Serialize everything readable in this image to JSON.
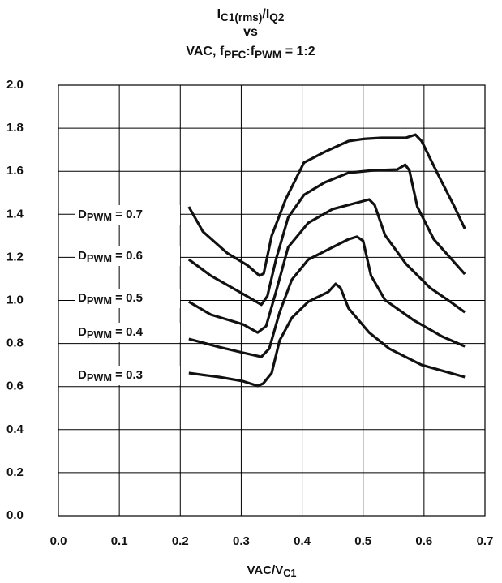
{
  "chart_data": {
    "type": "line",
    "title": [
      [
        "I",
        "C1(rms)",
        "/I",
        "Q2"
      ],
      [
        "vs"
      ],
      [
        "VAC, f",
        "PFC",
        ":f",
        "PWM",
        " = 1:2"
      ]
    ],
    "xlabel": [
      "VAC/V",
      "C1"
    ],
    "xlim": [
      0,
      0.7
    ],
    "xticks": [
      {
        "value": 0,
        "label": "0.0"
      },
      0.1,
      0.2,
      0.3,
      0.4,
      0.5,
      0.6,
      0.7
    ],
    "ylim": [
      0,
      2
    ],
    "yticks": [
      {
        "value": 0,
        "label": "0.0"
      },
      0.2,
      0.4,
      0.6,
      0.8,
      {
        "value": 1,
        "label": "1.0"
      },
      1.2,
      1.4,
      1.6,
      1.8,
      {
        "value": 2,
        "label": "2.0"
      }
    ],
    "grid": true,
    "series": [
      {
        "name": [
          "D",
          "PWM",
          " = 0.7"
        ],
        "color": "#111111",
        "x": [
          0.214,
          0.237,
          0.277,
          0.31,
          0.33,
          0.337,
          0.35,
          0.373,
          0.403,
          0.437,
          0.476,
          0.5,
          0.53,
          0.57,
          0.586,
          0.596,
          0.623,
          0.65,
          0.667
        ],
        "values": [
          1.435,
          1.32,
          1.22,
          1.164,
          1.115,
          1.125,
          1.3,
          1.47,
          1.64,
          1.69,
          1.74,
          1.75,
          1.755,
          1.755,
          1.77,
          1.74,
          1.585,
          1.435,
          1.333
        ]
      },
      {
        "name": [
          "D",
          "PWM",
          " = 0.6"
        ],
        "color": "#111111",
        "x": [
          0.214,
          0.25,
          0.303,
          0.333,
          0.343,
          0.357,
          0.377,
          0.403,
          0.437,
          0.476,
          0.516,
          0.556,
          0.569,
          0.576,
          0.589,
          0.616,
          0.643,
          0.667
        ],
        "values": [
          1.19,
          1.115,
          1.03,
          0.98,
          1.02,
          1.19,
          1.385,
          1.49,
          1.548,
          1.593,
          1.604,
          1.608,
          1.63,
          1.604,
          1.435,
          1.284,
          1.198,
          1.122
        ]
      },
      {
        "name": [
          "D",
          "PWM",
          " = 0.5"
        ],
        "color": "#111111",
        "x": [
          0.214,
          0.25,
          0.303,
          0.327,
          0.341,
          0.357,
          0.377,
          0.41,
          0.45,
          0.49,
          0.51,
          0.519,
          0.536,
          0.57,
          0.61,
          0.643,
          0.667
        ],
        "values": [
          0.994,
          0.934,
          0.889,
          0.851,
          0.881,
          1.04,
          1.247,
          1.36,
          1.424,
          1.454,
          1.469,
          1.443,
          1.303,
          1.171,
          1.058,
          0.994,
          0.945
        ]
      },
      {
        "name": [
          "D",
          "PWM",
          " = 0.4"
        ],
        "color": "#111111",
        "x": [
          0.214,
          0.264,
          0.303,
          0.333,
          0.346,
          0.363,
          0.383,
          0.41,
          0.45,
          0.476,
          0.49,
          0.5,
          0.513,
          0.536,
          0.583,
          0.63,
          0.667
        ],
        "values": [
          0.821,
          0.783,
          0.757,
          0.738,
          0.776,
          0.945,
          1.096,
          1.19,
          1.247,
          1.284,
          1.296,
          1.277,
          1.115,
          1.002,
          0.908,
          0.832,
          0.787
        ]
      },
      {
        "name": [
          "D",
          "PWM",
          " = 0.3"
        ],
        "color": "#111111",
        "x": [
          0.214,
          0.264,
          0.303,
          0.327,
          0.336,
          0.35,
          0.363,
          0.383,
          0.41,
          0.443,
          0.455,
          0.463,
          0.476,
          0.51,
          0.543,
          0.596,
          0.667
        ],
        "values": [
          0.663,
          0.644,
          0.625,
          0.603,
          0.614,
          0.663,
          0.814,
          0.919,
          0.994,
          1.04,
          1.077,
          1.058,
          0.964,
          0.851,
          0.776,
          0.7,
          0.644
        ]
      }
    ]
  }
}
